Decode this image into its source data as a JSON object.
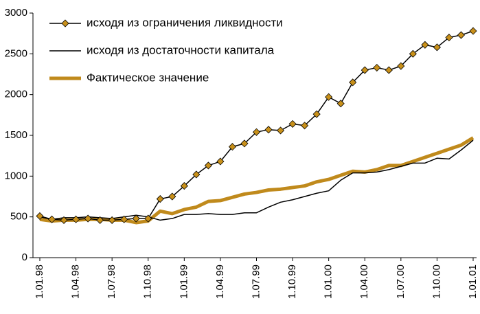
{
  "chart_data": {
    "type": "line",
    "categories": [
      "1.01.98",
      null,
      null,
      "1.04.98",
      null,
      null,
      "1.07.98",
      null,
      null,
      "1.10.98",
      null,
      null,
      "1.01.99",
      null,
      null,
      "1.04.99",
      null,
      null,
      "1.07.99",
      null,
      null,
      "1.10.99",
      null,
      null,
      "1.01.00",
      null,
      null,
      "1.04.00",
      null,
      null,
      "1.07.00",
      null,
      null,
      "1.10.00",
      null,
      null,
      "1.01.01"
    ],
    "series": [
      {
        "name": "исходя из ограничения ликвидности",
        "color": "#000000",
        "marker_color": "#c8901a",
        "values": [
          510,
          470,
          460,
          470,
          480,
          460,
          460,
          470,
          480,
          480,
          720,
          750,
          880,
          1020,
          1130,
          1180,
          1360,
          1400,
          1540,
          1570,
          1560,
          1640,
          1620,
          1760,
          1970,
          1890,
          2150,
          2300,
          2330,
          2300,
          2350,
          2500,
          2610,
          2580,
          2700,
          2730,
          2780
        ]
      },
      {
        "name": "исходя из достаточности капитала",
        "color": "#000000",
        "values": [
          500,
          470,
          490,
          490,
          500,
          490,
          480,
          500,
          520,
          500,
          460,
          480,
          530,
          530,
          540,
          530,
          530,
          550,
          550,
          620,
          680,
          710,
          750,
          790,
          820,
          950,
          1040,
          1040,
          1050,
          1080,
          1120,
          1160,
          1160,
          1220,
          1210,
          1320,
          1440
        ]
      },
      {
        "name": "Фактическое значение",
        "color": "#c08a1c",
        "values": [
          470,
          450,
          460,
          460,
          470,
          470,
          460,
          460,
          430,
          450,
          570,
          540,
          590,
          620,
          690,
          700,
          740,
          780,
          800,
          830,
          840,
          860,
          880,
          930,
          960,
          1010,
          1060,
          1050,
          1080,
          1130,
          1130,
          1180,
          1230,
          1280,
          1330,
          1380,
          1470
        ]
      }
    ],
    "ylim": [
      0,
      3000
    ],
    "yticks": [
      0,
      500,
      1000,
      1500,
      2000,
      2500,
      3000
    ],
    "grid": false,
    "legend": "upper left"
  }
}
